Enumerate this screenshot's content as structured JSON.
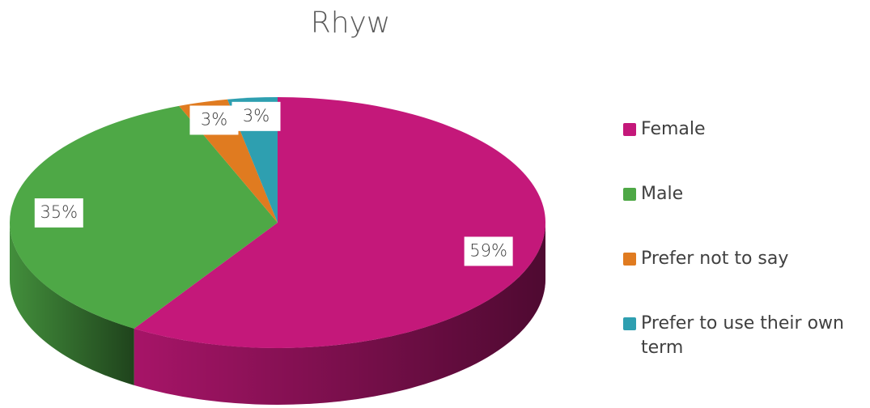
{
  "chart_data": {
    "type": "pie",
    "title": "Rhyw",
    "categories": [
      "Female",
      "Male",
      "Prefer not to say",
      "Prefer to use their own term"
    ],
    "values": [
      59,
      35,
      3,
      3
    ],
    "value_labels": [
      "59%",
      "35%",
      "3%",
      "3%"
    ],
    "colors": [
      "#c4187a",
      "#4ea846",
      "#e07b20",
      "#2e9fb0"
    ],
    "legend": "right"
  }
}
